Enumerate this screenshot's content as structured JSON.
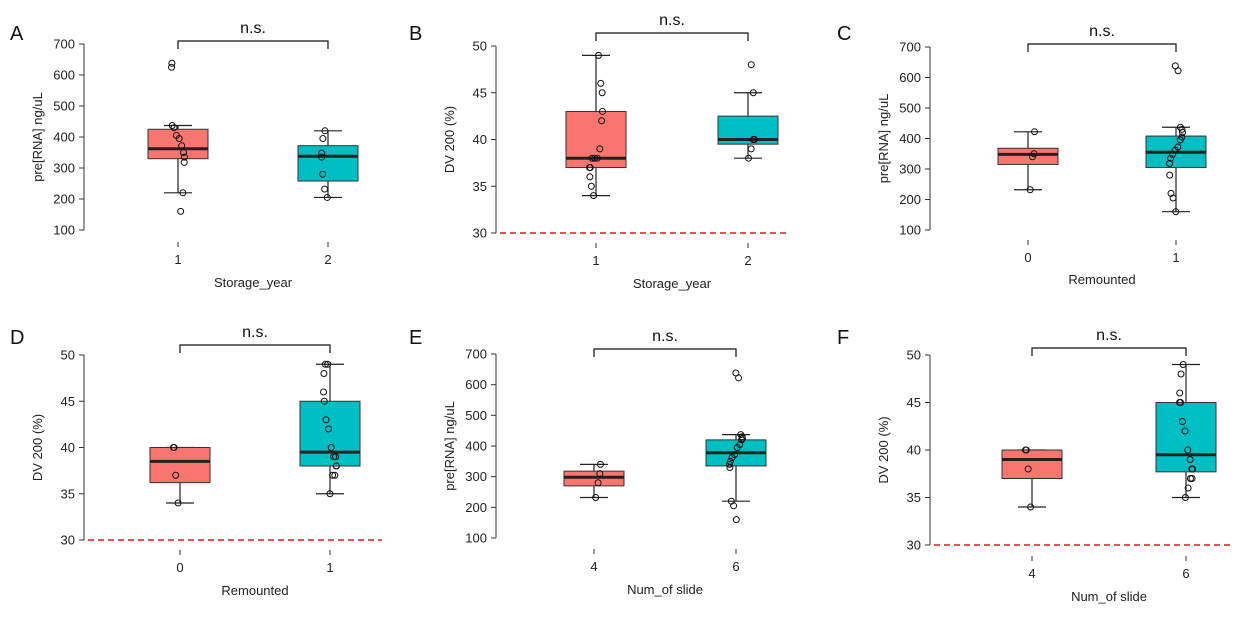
{
  "colors": {
    "group1": "#F8766D",
    "group2": "#00BFC4",
    "threshold": "#E41A1C"
  },
  "chart_data": [
    {
      "type": "box",
      "panel": "A",
      "xlabel": "Storage_year",
      "ylabel": "pre[RNA] ng/uL",
      "ylim": [
        100,
        700
      ],
      "yticks": [
        100,
        200,
        300,
        400,
        500,
        600,
        700
      ],
      "categories": [
        "1",
        "2"
      ],
      "significance": "n.s.",
      "threshold": null,
      "boxes": [
        {
          "category": "1",
          "whisker_low": 220,
          "q1": 330,
          "median": 362,
          "q3": 425,
          "whisker_high": 437,
          "points": [
            160,
            220,
            318,
            335,
            350,
            372,
            395,
            405,
            430,
            437,
            625,
            638
          ]
        },
        {
          "category": "2",
          "whisker_low": 205,
          "q1": 258,
          "median": 338,
          "q3": 372,
          "whisker_high": 420,
          "points": [
            205,
            232,
            280,
            335,
            348,
            395,
            420
          ]
        }
      ]
    },
    {
      "type": "box",
      "panel": "B",
      "xlabel": "Storage_year",
      "ylabel": "DV 200 (%)",
      "ylim": [
        30,
        50
      ],
      "yticks": [
        30,
        35,
        40,
        45,
        50
      ],
      "categories": [
        "1",
        "2"
      ],
      "significance": "n.s.",
      "threshold": 30,
      "boxes": [
        {
          "category": "1",
          "whisker_low": 34,
          "q1": 37,
          "median": 38,
          "q3": 43,
          "whisker_high": 49,
          "points": [
            34,
            35,
            36,
            37,
            37,
            38,
            38,
            38,
            39,
            42,
            43,
            45,
            46,
            49
          ]
        },
        {
          "category": "2",
          "whisker_low": 38,
          "q1": 39.5,
          "median": 40,
          "q3": 42.5,
          "whisker_high": 45,
          "points": [
            38,
            39,
            40,
            40,
            40,
            45,
            48
          ]
        }
      ]
    },
    {
      "type": "box",
      "panel": "C",
      "xlabel": "Remounted",
      "ylabel": "pre[RNA] ng/uL",
      "ylim": [
        100,
        700
      ],
      "yticks": [
        100,
        200,
        300,
        400,
        500,
        600,
        700
      ],
      "categories": [
        "0",
        "1"
      ],
      "significance": "n.s.",
      "threshold": null,
      "boxes": [
        {
          "category": "0",
          "whisker_low": 232,
          "q1": 315,
          "median": 348,
          "q3": 368,
          "whisker_high": 422,
          "points": [
            232,
            340,
            350,
            422
          ]
        },
        {
          "category": "1",
          "whisker_low": 160,
          "q1": 305,
          "median": 355,
          "q3": 408,
          "whisker_high": 437,
          "points": [
            160,
            205,
            220,
            280,
            318,
            335,
            348,
            362,
            372,
            395,
            405,
            420,
            430,
            437,
            622,
            638
          ]
        }
      ]
    },
    {
      "type": "box",
      "panel": "D",
      "xlabel": "Remounted",
      "ylabel": "DV 200 (%)",
      "ylim": [
        30,
        50
      ],
      "yticks": [
        30,
        35,
        40,
        45,
        50
      ],
      "categories": [
        "0",
        "1"
      ],
      "significance": "n.s.",
      "threshold": 30,
      "boxes": [
        {
          "category": "0",
          "whisker_low": 34,
          "q1": 36.2,
          "median": 38.5,
          "q3": 40,
          "whisker_high": 40,
          "points": [
            34,
            37,
            40,
            40
          ]
        },
        {
          "category": "1",
          "whisker_low": 35,
          "q1": 38,
          "median": 39.5,
          "q3": 45,
          "whisker_high": 49,
          "points": [
            35,
            37,
            37,
            38,
            38,
            39,
            39,
            40,
            42,
            43,
            45,
            46,
            48,
            49,
            49
          ]
        }
      ]
    },
    {
      "type": "box",
      "panel": "E",
      "xlabel": "Num_of slide",
      "ylabel": "pre[RNA] ng/uL",
      "ylim": [
        100,
        700
      ],
      "yticks": [
        100,
        200,
        300,
        400,
        500,
        600,
        700
      ],
      "categories": [
        "4",
        "6"
      ],
      "significance": "n.s.",
      "threshold": null,
      "boxes": [
        {
          "category": "4",
          "whisker_low": 232,
          "q1": 270,
          "median": 298,
          "q3": 318,
          "whisker_high": 340,
          "points": [
            232,
            280,
            310,
            340
          ]
        },
        {
          "category": "6",
          "whisker_low": 220,
          "q1": 335,
          "median": 378,
          "q3": 420,
          "whisker_high": 437,
          "points": [
            160,
            205,
            220,
            330,
            340,
            350,
            362,
            372,
            395,
            405,
            420,
            425,
            430,
            437,
            622,
            638
          ]
        }
      ]
    },
    {
      "type": "box",
      "panel": "F",
      "xlabel": "Num_of slide",
      "ylabel": "DV 200 (%)",
      "ylim": [
        30,
        50
      ],
      "yticks": [
        30,
        35,
        40,
        45,
        50
      ],
      "categories": [
        "4",
        "6"
      ],
      "significance": "n.s.",
      "threshold": 30,
      "boxes": [
        {
          "category": "4",
          "whisker_low": 34,
          "q1": 37,
          "median": 39,
          "q3": 40,
          "whisker_high": 40,
          "points": [
            34,
            38,
            40,
            40
          ]
        },
        {
          "category": "6",
          "whisker_low": 35,
          "q1": 37.7,
          "median": 39.5,
          "q3": 45,
          "whisker_high": 49,
          "points": [
            35,
            36,
            37,
            37,
            38,
            38,
            39,
            40,
            42,
            43,
            45,
            45,
            46,
            48,
            49
          ]
        }
      ]
    }
  ]
}
